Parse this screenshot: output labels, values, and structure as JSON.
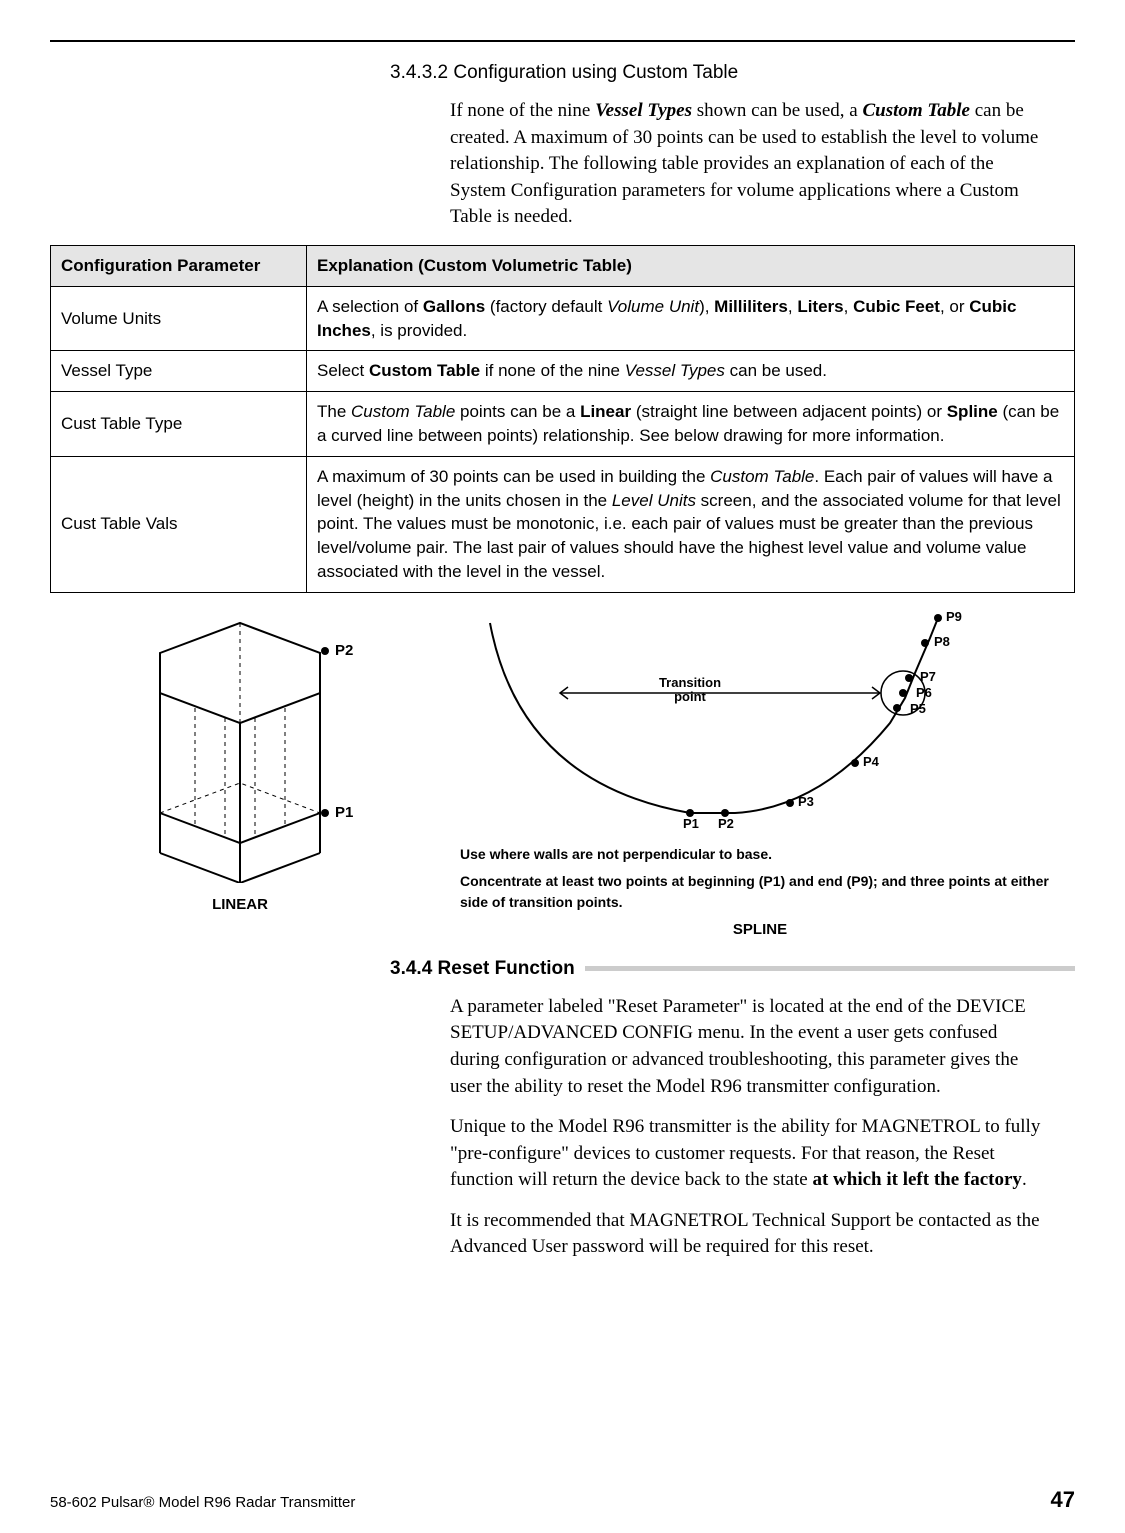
{
  "section1": {
    "number": "3.4.3.2 Configuration using Custom Table",
    "para_parts": [
      "If none of the nine ",
      "Vessel Types",
      " shown can be used, a ",
      "Custom Table",
      " can be created. A maximum of 30 points can be used to establish the level to volume relationship. The following table provides an explanation of each of the System Configuration parameters for volume applications where a Custom Table is needed."
    ]
  },
  "table": {
    "header": [
      "Configuration Parameter",
      "Explanation (Custom Volumetric Table)"
    ],
    "rows": [
      {
        "param": "Volume Units",
        "explanation_html": "A selection of <span class='b'>Gallons</span> (factory default <span class='ital'>Volume Unit</span>), <span class='b'>Milliliters</span>, <span class='b'>Liters</span>, <span class='b'>Cubic Feet</span>, or <span class='b'>Cubic Inches</span>, is provided."
      },
      {
        "param": "Vessel Type",
        "explanation_html": "Select <span class='b'>Custom Table</span> if none of the nine <span class='ital'>Vessel Types</span> can be used."
      },
      {
        "param": "Cust Table Type",
        "explanation_html": "The <span class='ital'>Custom Table</span> points can be a <span class='b'>Linear</span> (straight line between adjacent points) or <span class='b'>Spline</span> (can be a curved line between points) relationship. See below drawing for more information."
      },
      {
        "param": "Cust Table Vals",
        "explanation_html": "A maximum of 30 points can be used in building the <span class='ital'>Custom Table</span>. Each pair of values will have a level (height) in the units chosen in the <span class='ital'>Level Units</span> screen, and the associated volume for that level point. The values must be monotonic, i.e. each pair of values must be greater than the previous level/volume pair. The last pair of values should have the highest level value and volume value associated with the level in the vessel."
      }
    ]
  },
  "linear_diagram": {
    "caption": "LINEAR",
    "labels": {
      "p1": "P1",
      "p2": "P2"
    }
  },
  "spline_diagram": {
    "caption": "SPLINE",
    "transition_label": "Transition\npoint",
    "points": {
      "p1": "P1",
      "p2": "P2",
      "p3": "P3",
      "p4": "P4",
      "p5": "P5",
      "p6": "P6",
      "p7": "P7",
      "p8": "P8",
      "p9": "P9"
    },
    "note1": "Use where walls are not perpendicular to base.",
    "note2": "Concentrate at least two points at beginning (P1) and end (P9); and three points at either side of transition points."
  },
  "section2": {
    "heading": "3.4.4  Reset Function",
    "para1": "A parameter labeled \"Reset Parameter\" is located at the end of the DEVICE SETUP/ADVANCED CONFIG menu. In the event a user gets confused during configuration or advanced troubleshooting, this parameter gives the user the ability to reset the Model R96 transmitter configuration.",
    "para2_pre": "Unique to the Model R96 transmitter is the ability for MAGNETROL to fully \"pre-configure\" devices to customer requests. For that reason, the Reset function will return the device back to the state ",
    "para2_bold": "at which it left the factory",
    "para2_post": ".",
    "para3": "It is recommended that MAGNETROL Technical Support be contacted as the Advanced User password will be required for this reset."
  },
  "footer": {
    "doc": "58-602 Pulsar® Model R96 Radar Transmitter",
    "page": "47"
  }
}
